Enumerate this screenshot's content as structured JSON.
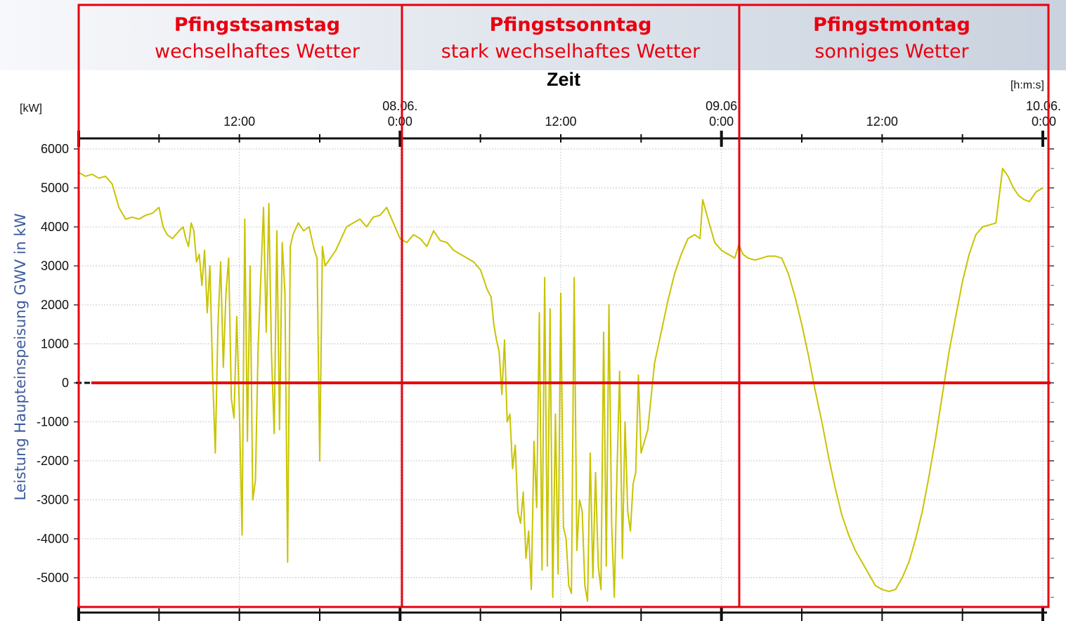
{
  "chart_data": {
    "type": "line",
    "title": "",
    "xlabel": "Zeit",
    "x_unit": "[h:m:s]",
    "ylabel": "Leistung Haupteinspeisung GWV in kW",
    "y_unit": "[kW]",
    "ylim": [
      -5800,
      6300
    ],
    "y_ticks": [
      6000,
      5000,
      4000,
      3000,
      2000,
      1000,
      0,
      -1000,
      -2000,
      -3000,
      -4000,
      -5000
    ],
    "y_tick_labels": [
      "6000",
      "5000",
      "4000",
      "3000",
      "2000",
      "1000",
      "0",
      "-1000",
      "-2000",
      "-3000",
      "-4000",
      "-5000"
    ],
    "xlim_hours": [
      0,
      72
    ],
    "x_tick_labels": [
      {
        "hour": 12,
        "line1": "",
        "line2": "12:00"
      },
      {
        "hour": 24,
        "line1": "08.06.",
        "line2": "0:00"
      },
      {
        "hour": 36,
        "line1": "",
        "line2": "12:00"
      },
      {
        "hour": 48,
        "line1": "09.06",
        "line2": "0:00"
      },
      {
        "hour": 60,
        "line1": "",
        "line2": "12:00"
      },
      {
        "hour": 72,
        "line1": "10.06.",
        "line2": "0:00"
      }
    ],
    "grid": true,
    "line_color": "#c8c400",
    "highlight_color": "#e8000f",
    "series": [
      {
        "name": "",
        "points": [
          [
            0,
            5400
          ],
          [
            0.5,
            5300
          ],
          [
            1,
            5350
          ],
          [
            1.5,
            5250
          ],
          [
            2,
            5300
          ],
          [
            2.5,
            5100
          ],
          [
            3,
            4500
          ],
          [
            3.5,
            4200
          ],
          [
            4,
            4250
          ],
          [
            4.5,
            4200
          ],
          [
            5,
            4300
          ],
          [
            5.5,
            4350
          ],
          [
            6,
            4500
          ],
          [
            6.3,
            4000
          ],
          [
            6.6,
            3800
          ],
          [
            7,
            3700
          ],
          [
            7.5,
            3900
          ],
          [
            7.8,
            4000
          ],
          [
            8,
            3700
          ],
          [
            8.2,
            3500
          ],
          [
            8.4,
            4100
          ],
          [
            8.6,
            3900
          ],
          [
            8.8,
            3100
          ],
          [
            9,
            3300
          ],
          [
            9.2,
            2500
          ],
          [
            9.4,
            3400
          ],
          [
            9.6,
            1800
          ],
          [
            9.8,
            3000
          ],
          [
            10,
            200
          ],
          [
            10.2,
            -1800
          ],
          [
            10.4,
            1500
          ],
          [
            10.6,
            3100
          ],
          [
            10.8,
            400
          ],
          [
            11,
            2300
          ],
          [
            11.2,
            3200
          ],
          [
            11.4,
            -400
          ],
          [
            11.6,
            -900
          ],
          [
            11.8,
            1700
          ],
          [
            12,
            -700
          ],
          [
            12.2,
            -3900
          ],
          [
            12.4,
            4200
          ],
          [
            12.6,
            -1500
          ],
          [
            12.8,
            3000
          ],
          [
            13,
            -3000
          ],
          [
            13.2,
            -2500
          ],
          [
            13.4,
            900
          ],
          [
            13.6,
            2700
          ],
          [
            13.8,
            4500
          ],
          [
            14,
            1300
          ],
          [
            14.2,
            4600
          ],
          [
            14.4,
            700
          ],
          [
            14.6,
            -1300
          ],
          [
            14.8,
            3900
          ],
          [
            15,
            -1200
          ],
          [
            15.2,
            3600
          ],
          [
            15.4,
            2300
          ],
          [
            15.6,
            -4600
          ],
          [
            15.8,
            3500
          ],
          [
            16,
            3800
          ],
          [
            16.4,
            4100
          ],
          [
            16.8,
            3900
          ],
          [
            17.2,
            4000
          ],
          [
            17.6,
            3400
          ],
          [
            17.8,
            3200
          ],
          [
            18,
            -2000
          ],
          [
            18.2,
            3500
          ],
          [
            18.4,
            3000
          ],
          [
            18.8,
            3200
          ],
          [
            19.2,
            3400
          ],
          [
            19.6,
            3700
          ],
          [
            20,
            4000
          ],
          [
            20.5,
            4100
          ],
          [
            21,
            4200
          ],
          [
            21.5,
            4000
          ],
          [
            22,
            4250
          ],
          [
            22.5,
            4300
          ],
          [
            23,
            4500
          ],
          [
            23.5,
            4100
          ],
          [
            24,
            3700
          ],
          [
            24.5,
            3600
          ],
          [
            25,
            3800
          ],
          [
            25.5,
            3700
          ],
          [
            26,
            3500
          ],
          [
            26.5,
            3900
          ],
          [
            27,
            3650
          ],
          [
            27.5,
            3600
          ],
          [
            28,
            3400
          ],
          [
            28.5,
            3300
          ],
          [
            29,
            3200
          ],
          [
            29.5,
            3100
          ],
          [
            30,
            2900
          ],
          [
            30.5,
            2400
          ],
          [
            30.8,
            2200
          ],
          [
            31,
            1500
          ],
          [
            31.2,
            1100
          ],
          [
            31.4,
            800
          ],
          [
            31.6,
            -300
          ],
          [
            31.8,
            1100
          ],
          [
            32,
            -1000
          ],
          [
            32.2,
            -800
          ],
          [
            32.4,
            -2200
          ],
          [
            32.6,
            -1600
          ],
          [
            32.8,
            -3300
          ],
          [
            33,
            -3600
          ],
          [
            33.2,
            -2800
          ],
          [
            33.4,
            -4500
          ],
          [
            33.6,
            -3800
          ],
          [
            33.8,
            -5300
          ],
          [
            34,
            -1500
          ],
          [
            34.2,
            -3200
          ],
          [
            34.4,
            1800
          ],
          [
            34.6,
            -4800
          ],
          [
            34.8,
            2700
          ],
          [
            35,
            -4700
          ],
          [
            35.2,
            1900
          ],
          [
            35.4,
            -5500
          ],
          [
            35.6,
            -800
          ],
          [
            35.8,
            -4900
          ],
          [
            36,
            2300
          ],
          [
            36.2,
            -3700
          ],
          [
            36.4,
            -4000
          ],
          [
            36.6,
            -5200
          ],
          [
            36.8,
            -5400
          ],
          [
            37,
            2700
          ],
          [
            37.2,
            -4300
          ],
          [
            37.4,
            -3000
          ],
          [
            37.6,
            -3300
          ],
          [
            37.8,
            -5200
          ],
          [
            38,
            -5600
          ],
          [
            38.2,
            -1800
          ],
          [
            38.4,
            -5000
          ],
          [
            38.6,
            -2300
          ],
          [
            38.8,
            -4700
          ],
          [
            39,
            -5300
          ],
          [
            39.2,
            1300
          ],
          [
            39.4,
            -4700
          ],
          [
            39.6,
            2000
          ],
          [
            39.8,
            -3600
          ],
          [
            40,
            -5500
          ],
          [
            40.2,
            -2300
          ],
          [
            40.4,
            300
          ],
          [
            40.6,
            -4500
          ],
          [
            40.8,
            -1000
          ],
          [
            41,
            -3300
          ],
          [
            41.2,
            -3800
          ],
          [
            41.4,
            -2600
          ],
          [
            41.6,
            -2300
          ],
          [
            41.8,
            200
          ],
          [
            42,
            -1800
          ],
          [
            42.5,
            -1200
          ],
          [
            43,
            500
          ],
          [
            43.5,
            1300
          ],
          [
            44,
            2100
          ],
          [
            44.5,
            2800
          ],
          [
            45,
            3300
          ],
          [
            45.5,
            3700
          ],
          [
            46,
            3800
          ],
          [
            46.4,
            3700
          ],
          [
            46.6,
            4700
          ],
          [
            47,
            4200
          ],
          [
            47.5,
            3600
          ],
          [
            48,
            3400
          ],
          [
            48.5,
            3300
          ],
          [
            49,
            3200
          ],
          [
            49.3,
            3550
          ],
          [
            49.6,
            3300
          ],
          [
            50,
            3200
          ],
          [
            50.5,
            3150
          ],
          [
            51,
            3200
          ],
          [
            51.5,
            3250
          ],
          [
            52,
            3250
          ],
          [
            52.5,
            3200
          ],
          [
            53,
            2800
          ],
          [
            53.5,
            2200
          ],
          [
            54,
            1500
          ],
          [
            54.5,
            700
          ],
          [
            55,
            -200
          ],
          [
            55.5,
            -1000
          ],
          [
            56,
            -1900
          ],
          [
            56.5,
            -2700
          ],
          [
            57,
            -3400
          ],
          [
            57.5,
            -3900
          ],
          [
            58,
            -4300
          ],
          [
            58.5,
            -4600
          ],
          [
            59,
            -4900
          ],
          [
            59.5,
            -5200
          ],
          [
            60,
            -5300
          ],
          [
            60.5,
            -5350
          ],
          [
            61,
            -5300
          ],
          [
            61.5,
            -5000
          ],
          [
            62,
            -4600
          ],
          [
            62.5,
            -4000
          ],
          [
            63,
            -3300
          ],
          [
            63.5,
            -2400
          ],
          [
            64,
            -1400
          ],
          [
            64.5,
            -300
          ],
          [
            65,
            800
          ],
          [
            65.5,
            1700
          ],
          [
            66,
            2600
          ],
          [
            66.5,
            3300
          ],
          [
            67,
            3800
          ],
          [
            67.5,
            4000
          ],
          [
            68,
            4050
          ],
          [
            68.5,
            4100
          ],
          [
            69,
            5500
          ],
          [
            69.4,
            5300
          ],
          [
            69.8,
            5000
          ],
          [
            70.2,
            4800
          ],
          [
            70.6,
            4700
          ],
          [
            71,
            4650
          ],
          [
            71.5,
            4900
          ],
          [
            72,
            5000
          ]
        ]
      }
    ]
  },
  "days": [
    {
      "title": "Pfingstsamstag",
      "weather": "wechselhaftes Wetter"
    },
    {
      "title": "Pfingstsonntag",
      "weather": "stark wechselhaftes Wetter"
    },
    {
      "title": "Pfingstmontag",
      "weather": "sonniges Wetter"
    }
  ]
}
